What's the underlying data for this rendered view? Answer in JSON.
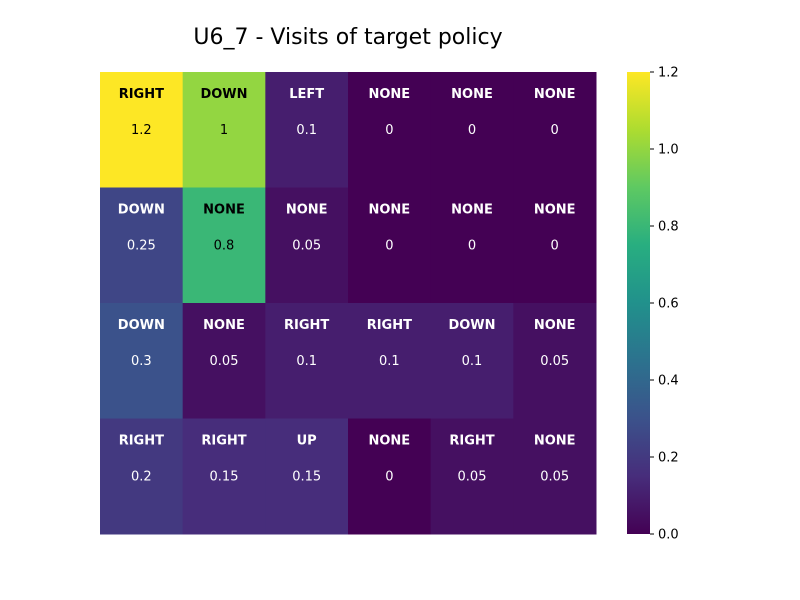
{
  "chart_data": {
    "type": "heatmap",
    "title": "U6_7 - Visits of target policy",
    "rows": 4,
    "cols": 6,
    "actions": [
      [
        "RIGHT",
        "DOWN",
        "LEFT",
        "NONE",
        "NONE",
        "NONE"
      ],
      [
        "DOWN",
        "NONE",
        "NONE",
        "NONE",
        "NONE",
        "NONE"
      ],
      [
        "DOWN",
        "NONE",
        "RIGHT",
        "RIGHT",
        "DOWN",
        "NONE"
      ],
      [
        "RIGHT",
        "RIGHT",
        "UP",
        "NONE",
        "RIGHT",
        "NONE"
      ]
    ],
    "value_labels": [
      [
        "1.2",
        "1",
        "0.1",
        "0",
        "0",
        "0"
      ],
      [
        "0.25",
        "0.8",
        "0.05",
        "0",
        "0",
        "0"
      ],
      [
        "0.3",
        "0.05",
        "0.1",
        "0.1",
        "0.1",
        "0.05"
      ],
      [
        "0.2",
        "0.15",
        "0.15",
        "0",
        "0.05",
        "0.05"
      ]
    ],
    "values": [
      [
        1.2,
        1.0,
        0.1,
        0.0,
        0.0,
        0.0
      ],
      [
        0.25,
        0.8,
        0.05,
        0.0,
        0.0,
        0.0
      ],
      [
        0.3,
        0.05,
        0.1,
        0.1,
        0.1,
        0.05
      ],
      [
        0.2,
        0.15,
        0.15,
        0.0,
        0.05,
        0.05
      ]
    ],
    "colorbar": {
      "colormap": "viridis",
      "range": [
        0.0,
        1.2
      ],
      "tick_labels": [
        "0.0",
        "0.2",
        "0.4",
        "0.6",
        "0.8",
        "1.0",
        "1.2"
      ],
      "tick_values": [
        0.0,
        0.2,
        0.4,
        0.6,
        0.8,
        1.0,
        1.2
      ]
    }
  }
}
